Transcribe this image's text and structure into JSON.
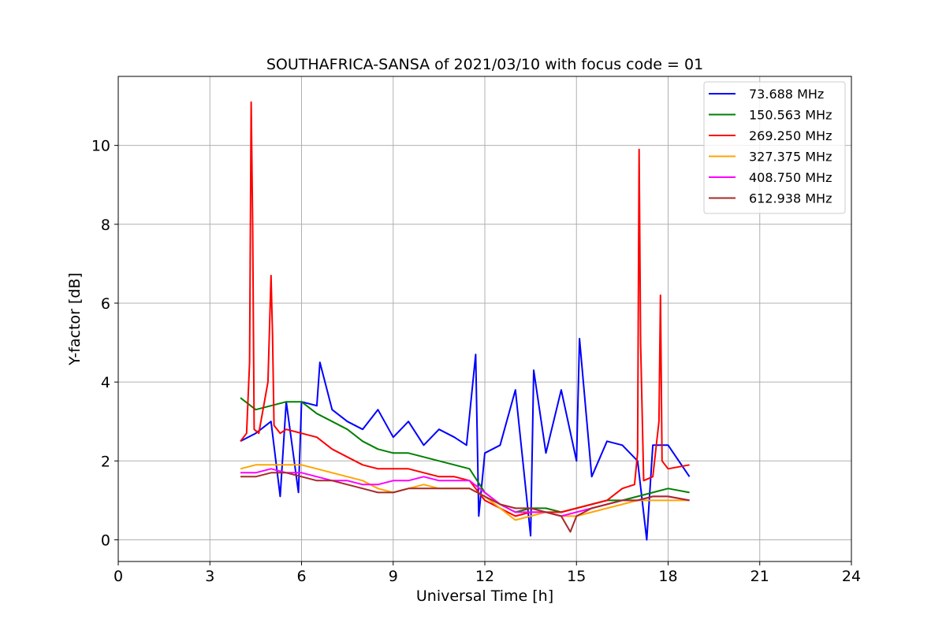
{
  "chart_data": {
    "type": "line",
    "title": "SOUTHAFRICA-SANSA of 2021/03/10 with focus code = 01",
    "xlabel": "Universal Time [h]",
    "ylabel": "Y-factor [dB]",
    "xlim": [
      0,
      24
    ],
    "ylim": [
      -0.55,
      11.75
    ],
    "xticks": [
      0,
      3,
      6,
      9,
      12,
      15,
      18,
      21,
      24
    ],
    "yticks": [
      0,
      2,
      4,
      6,
      8,
      10
    ],
    "grid": true,
    "legend_position": "top-right",
    "series": [
      {
        "name": " 73.688 MHz",
        "color": "#0000ff",
        "x": [
          4.0,
          4.5,
          5.0,
          5.3,
          5.5,
          5.9,
          6.0,
          6.5,
          6.6,
          7.0,
          7.5,
          8.0,
          8.5,
          9.0,
          9.5,
          10.0,
          10.5,
          11.0,
          11.4,
          11.7,
          11.8,
          12.0,
          12.5,
          13.0,
          13.5,
          13.6,
          14.0,
          14.5,
          15.0,
          15.1,
          15.5,
          16.0,
          16.5,
          17.0,
          17.3,
          17.5,
          18.0,
          18.7
        ],
        "values": [
          2.5,
          2.7,
          3.0,
          1.1,
          3.5,
          1.2,
          3.5,
          3.4,
          4.5,
          3.3,
          3.0,
          2.8,
          3.3,
          2.6,
          3.0,
          2.4,
          2.8,
          2.6,
          2.4,
          4.7,
          0.6,
          2.2,
          2.4,
          3.8,
          0.1,
          4.3,
          2.2,
          3.8,
          2.0,
          5.1,
          1.6,
          2.5,
          2.4,
          2.0,
          0.0,
          2.4,
          2.4,
          1.6
        ]
      },
      {
        "name": "150.563 MHz",
        "color": "#008000",
        "x": [
          4.0,
          4.5,
          5.0,
          5.5,
          6.0,
          6.5,
          7.0,
          7.5,
          8.0,
          8.5,
          9.0,
          9.5,
          10.0,
          10.5,
          11.0,
          11.5,
          12.0,
          12.5,
          13.0,
          13.5,
          14.0,
          14.5,
          15.0,
          15.5,
          16.0,
          16.5,
          17.0,
          17.5,
          18.0,
          18.7
        ],
        "values": [
          3.6,
          3.3,
          3.4,
          3.5,
          3.5,
          3.2,
          3.0,
          2.8,
          2.5,
          2.3,
          2.2,
          2.2,
          2.1,
          2.0,
          1.9,
          1.8,
          1.2,
          0.9,
          0.7,
          0.8,
          0.8,
          0.7,
          0.8,
          0.9,
          1.0,
          1.0,
          1.1,
          1.2,
          1.3,
          1.2
        ]
      },
      {
        "name": "269.250 MHz",
        "color": "#ff0000",
        "x": [
          4.0,
          4.2,
          4.3,
          4.35,
          4.4,
          4.45,
          4.6,
          4.9,
          5.0,
          5.05,
          5.1,
          5.3,
          5.5,
          6.0,
          6.5,
          7.0,
          7.5,
          8.0,
          8.5,
          9.0,
          9.5,
          10.0,
          10.5,
          11.0,
          11.5,
          12.0,
          12.5,
          13.0,
          13.5,
          14.0,
          14.5,
          15.0,
          15.5,
          16.0,
          16.5,
          16.9,
          17.0,
          17.05,
          17.1,
          17.2,
          17.5,
          17.7,
          17.75,
          17.8,
          18.0,
          18.7
        ],
        "values": [
          2.5,
          2.7,
          4.5,
          11.1,
          8.0,
          2.8,
          2.7,
          4.0,
          6.7,
          5.2,
          2.9,
          2.7,
          2.8,
          2.7,
          2.6,
          2.3,
          2.1,
          1.9,
          1.8,
          1.8,
          1.8,
          1.7,
          1.6,
          1.6,
          1.5,
          1.0,
          0.8,
          0.6,
          0.7,
          0.7,
          0.7,
          0.8,
          0.9,
          1.0,
          1.3,
          1.4,
          2.2,
          9.9,
          5.0,
          1.5,
          1.6,
          3.0,
          6.2,
          2.0,
          1.8,
          1.9
        ]
      },
      {
        "name": "327.375 MHz",
        "color": "#ffa500",
        "x": [
          4.0,
          4.5,
          5.0,
          5.5,
          6.0,
          6.5,
          7.0,
          7.5,
          8.0,
          8.5,
          9.0,
          9.5,
          10.0,
          10.5,
          11.0,
          11.5,
          12.0,
          12.5,
          13.0,
          13.5,
          14.0,
          14.5,
          15.0,
          15.5,
          16.0,
          16.5,
          17.0,
          17.5,
          18.0,
          18.7
        ],
        "values": [
          1.8,
          1.9,
          1.9,
          1.9,
          1.9,
          1.8,
          1.7,
          1.6,
          1.5,
          1.3,
          1.2,
          1.3,
          1.4,
          1.3,
          1.3,
          1.3,
          1.1,
          0.8,
          0.5,
          0.6,
          0.7,
          0.6,
          0.6,
          0.7,
          0.8,
          0.9,
          1.0,
          1.0,
          1.0,
          1.0
        ]
      },
      {
        "name": "408.750 MHz",
        "color": "#ff00ff",
        "x": [
          4.0,
          4.5,
          5.0,
          5.5,
          6.0,
          6.5,
          7.0,
          7.5,
          8.0,
          8.5,
          9.0,
          9.5,
          10.0,
          10.5,
          11.0,
          11.5,
          12.0,
          12.5,
          13.0,
          13.5,
          14.0,
          14.5,
          15.0,
          15.5,
          16.0,
          16.5,
          17.0,
          17.5,
          18.0,
          18.7
        ],
        "values": [
          1.7,
          1.7,
          1.8,
          1.7,
          1.7,
          1.6,
          1.5,
          1.5,
          1.4,
          1.4,
          1.5,
          1.5,
          1.6,
          1.5,
          1.5,
          1.5,
          1.2,
          0.9,
          0.7,
          0.7,
          0.7,
          0.6,
          0.7,
          0.8,
          0.9,
          1.0,
          1.0,
          1.1,
          1.1,
          1.0
        ]
      },
      {
        "name": "612.938 MHz",
        "color": "#a52a2a",
        "x": [
          4.0,
          4.5,
          5.0,
          5.5,
          6.0,
          6.5,
          7.0,
          7.5,
          8.0,
          8.5,
          9.0,
          9.5,
          10.0,
          10.5,
          11.0,
          11.5,
          12.0,
          12.5,
          13.0,
          13.5,
          14.0,
          14.5,
          14.8,
          15.0,
          15.5,
          16.0,
          16.5,
          17.0,
          17.5,
          18.0,
          18.7
        ],
        "values": [
          1.6,
          1.6,
          1.7,
          1.7,
          1.6,
          1.5,
          1.5,
          1.4,
          1.3,
          1.2,
          1.2,
          1.3,
          1.3,
          1.3,
          1.3,
          1.3,
          1.1,
          0.9,
          0.8,
          0.8,
          0.7,
          0.6,
          0.2,
          0.6,
          0.8,
          0.9,
          1.0,
          1.0,
          1.1,
          1.1,
          1.0
        ]
      }
    ]
  }
}
